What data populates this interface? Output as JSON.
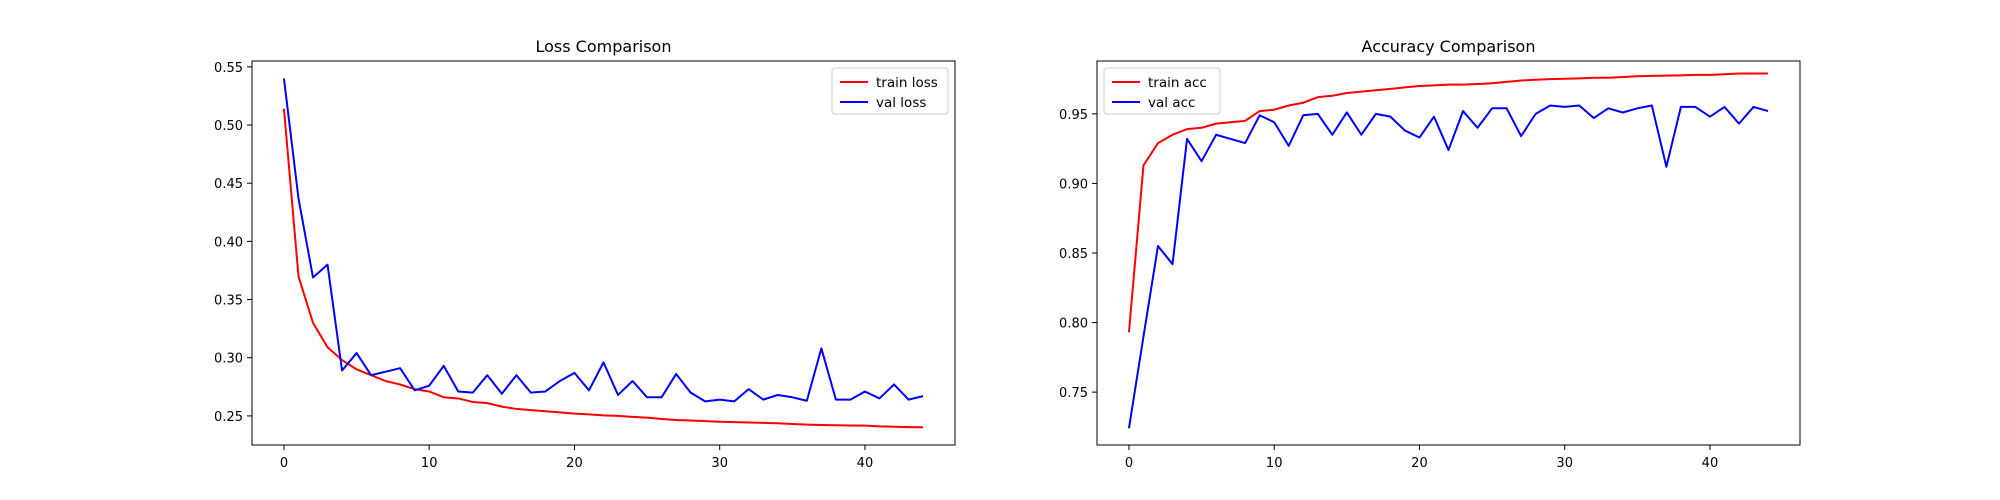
{
  "chart_data": [
    {
      "type": "line",
      "title": "Loss Comparison",
      "xlabel": "",
      "ylabel": "",
      "xlim": [
        -2.2,
        46.2
      ],
      "ylim": [
        0.225,
        0.555
      ],
      "xticks": [
        0,
        10,
        20,
        30,
        40
      ],
      "yticks": [
        0.25,
        0.3,
        0.35,
        0.4,
        0.45,
        0.5,
        0.55
      ],
      "grid": false,
      "legend_position": "top-right",
      "x": [
        0,
        1,
        2,
        3,
        4,
        5,
        6,
        7,
        8,
        9,
        10,
        11,
        12,
        13,
        14,
        15,
        16,
        17,
        18,
        19,
        20,
        21,
        22,
        23,
        24,
        25,
        26,
        27,
        28,
        29,
        30,
        31,
        32,
        33,
        34,
        35,
        36,
        37,
        38,
        39,
        40,
        41,
        42,
        43,
        44
      ],
      "series": [
        {
          "name": "train loss",
          "color": "#ff0000",
          "values": [
            0.514,
            0.37,
            0.33,
            0.309,
            0.298,
            0.29,
            0.285,
            0.28,
            0.277,
            0.273,
            0.271,
            0.266,
            0.265,
            0.262,
            0.261,
            0.258,
            0.256,
            0.255,
            0.254,
            0.253,
            0.252,
            0.2513,
            0.2505,
            0.25,
            0.2492,
            0.2485,
            0.2473,
            0.2465,
            0.246,
            0.2455,
            0.245,
            0.2447,
            0.2443,
            0.244,
            0.2437,
            0.243,
            0.2425,
            0.2422,
            0.242,
            0.2418,
            0.2416,
            0.241,
            0.2407,
            0.2404,
            0.2402
          ]
        },
        {
          "name": "val loss",
          "color": "#0000ff",
          "values": [
            0.54,
            0.437,
            0.369,
            0.38,
            0.289,
            0.304,
            0.285,
            0.288,
            0.291,
            0.272,
            0.276,
            0.293,
            0.271,
            0.27,
            0.285,
            0.269,
            0.285,
            0.27,
            0.271,
            0.28,
            0.287,
            0.272,
            0.296,
            0.268,
            0.28,
            0.266,
            0.266,
            0.286,
            0.27,
            0.2625,
            0.264,
            0.2625,
            0.273,
            0.264,
            0.268,
            0.266,
            0.263,
            0.308,
            0.264,
            0.264,
            0.271,
            0.265,
            0.277,
            0.264,
            0.267
          ]
        }
      ]
    },
    {
      "type": "line",
      "title": "Accuracy Comparison",
      "xlabel": "",
      "ylabel": "",
      "xlim": [
        -2.2,
        46.2
      ],
      "ylim": [
        0.712,
        0.988
      ],
      "xticks": [
        0,
        10,
        20,
        30,
        40
      ],
      "yticks": [
        0.75,
        0.8,
        0.85,
        0.9,
        0.95
      ],
      "grid": false,
      "legend_position": "top-left",
      "x": [
        0,
        1,
        2,
        3,
        4,
        5,
        6,
        7,
        8,
        9,
        10,
        11,
        12,
        13,
        14,
        15,
        16,
        17,
        18,
        19,
        20,
        21,
        22,
        23,
        24,
        25,
        26,
        27,
        28,
        29,
        30,
        31,
        32,
        33,
        34,
        35,
        36,
        37,
        38,
        39,
        40,
        41,
        42,
        43,
        44
      ],
      "series": [
        {
          "name": "train acc",
          "color": "#ff0000",
          "values": [
            0.793,
            0.913,
            0.929,
            0.935,
            0.939,
            0.94,
            0.943,
            0.944,
            0.945,
            0.952,
            0.953,
            0.956,
            0.958,
            0.962,
            0.963,
            0.965,
            0.966,
            0.967,
            0.968,
            0.969,
            0.97,
            0.9705,
            0.971,
            0.971,
            0.9715,
            0.972,
            0.973,
            0.974,
            0.9745,
            0.975,
            0.9752,
            0.9755,
            0.976,
            0.976,
            0.9765,
            0.977,
            0.9773,
            0.9775,
            0.9777,
            0.978,
            0.978,
            0.9785,
            0.979,
            0.979,
            0.979
          ]
        },
        {
          "name": "val acc",
          "color": "#0000ff",
          "values": [
            0.724,
            0.79,
            0.855,
            0.842,
            0.932,
            0.916,
            0.935,
            0.932,
            0.929,
            0.949,
            0.944,
            0.927,
            0.949,
            0.95,
            0.935,
            0.951,
            0.935,
            0.95,
            0.948,
            0.938,
            0.933,
            0.948,
            0.924,
            0.952,
            0.94,
            0.954,
            0.954,
            0.934,
            0.95,
            0.956,
            0.955,
            0.956,
            0.947,
            0.954,
            0.951,
            0.954,
            0.956,
            0.912,
            0.955,
            0.955,
            0.948,
            0.955,
            0.943,
            0.955,
            0.952
          ]
        }
      ]
    }
  ]
}
